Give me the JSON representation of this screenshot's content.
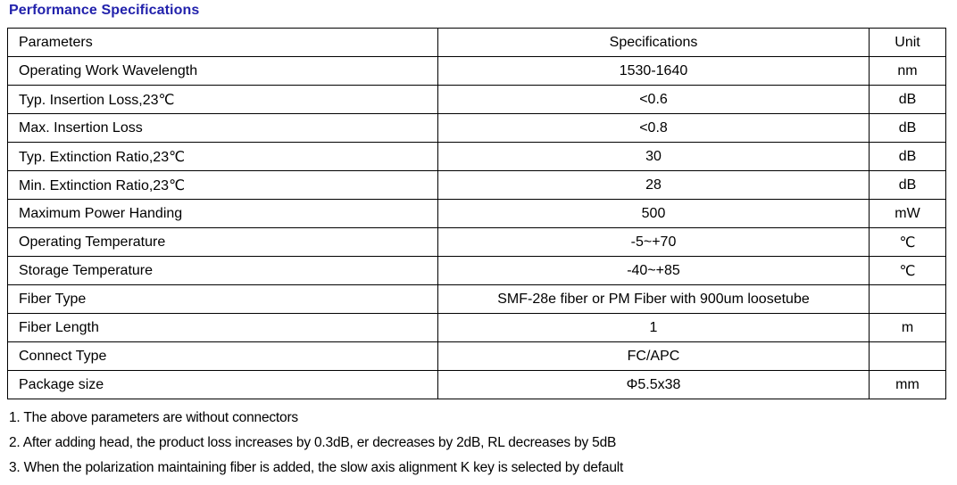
{
  "page": {
    "title": "Performance Specifications",
    "title_color": "#2222AC"
  },
  "table": {
    "headers": {
      "parameters": "Parameters",
      "specifications": "Specifications",
      "unit": "Unit"
    },
    "rows": [
      {
        "parameter": "Operating Work Wavelength",
        "specification": "1530-1640",
        "unit": "nm"
      },
      {
        "parameter": "Typ. Insertion Loss,23℃",
        "specification": "<0.6",
        "unit": "dB"
      },
      {
        "parameter": "Max. Insertion Loss",
        "specification": "<0.8",
        "unit": "dB"
      },
      {
        "parameter": "Typ. Extinction Ratio,23℃",
        "specification": "30",
        "unit": "dB"
      },
      {
        "parameter": "Min. Extinction Ratio,23℃",
        "specification": "28",
        "unit": "dB"
      },
      {
        "parameter": "Maximum Power Handing",
        "specification": "500",
        "unit": "mW"
      },
      {
        "parameter": "Operating Temperature",
        "specification": "-5~+70",
        "unit": "℃"
      },
      {
        "parameter": "Storage Temperature",
        "specification": "-40~+85",
        "unit": "℃"
      },
      {
        "parameter": "Fiber Type",
        "specification": "SMF-28e fiber or PM Fiber with 900um loosetube",
        "unit": ""
      },
      {
        "parameter": "Fiber Length",
        "specification": "1",
        "unit": "m"
      },
      {
        "parameter": "Connect Type",
        "specification": "FC/APC",
        "unit": ""
      },
      {
        "parameter": "Package size",
        "specification": "Φ5.5x38",
        "unit": "mm"
      }
    ]
  },
  "notes": [
    "1. The above parameters are without connectors",
    "2. After adding head, the product loss increases by 0.3dB, er decreases by 2dB, RL decreases by 5dB",
    "3. When the polarization maintaining fiber is added, the slow axis alignment K key is selected by default"
  ]
}
